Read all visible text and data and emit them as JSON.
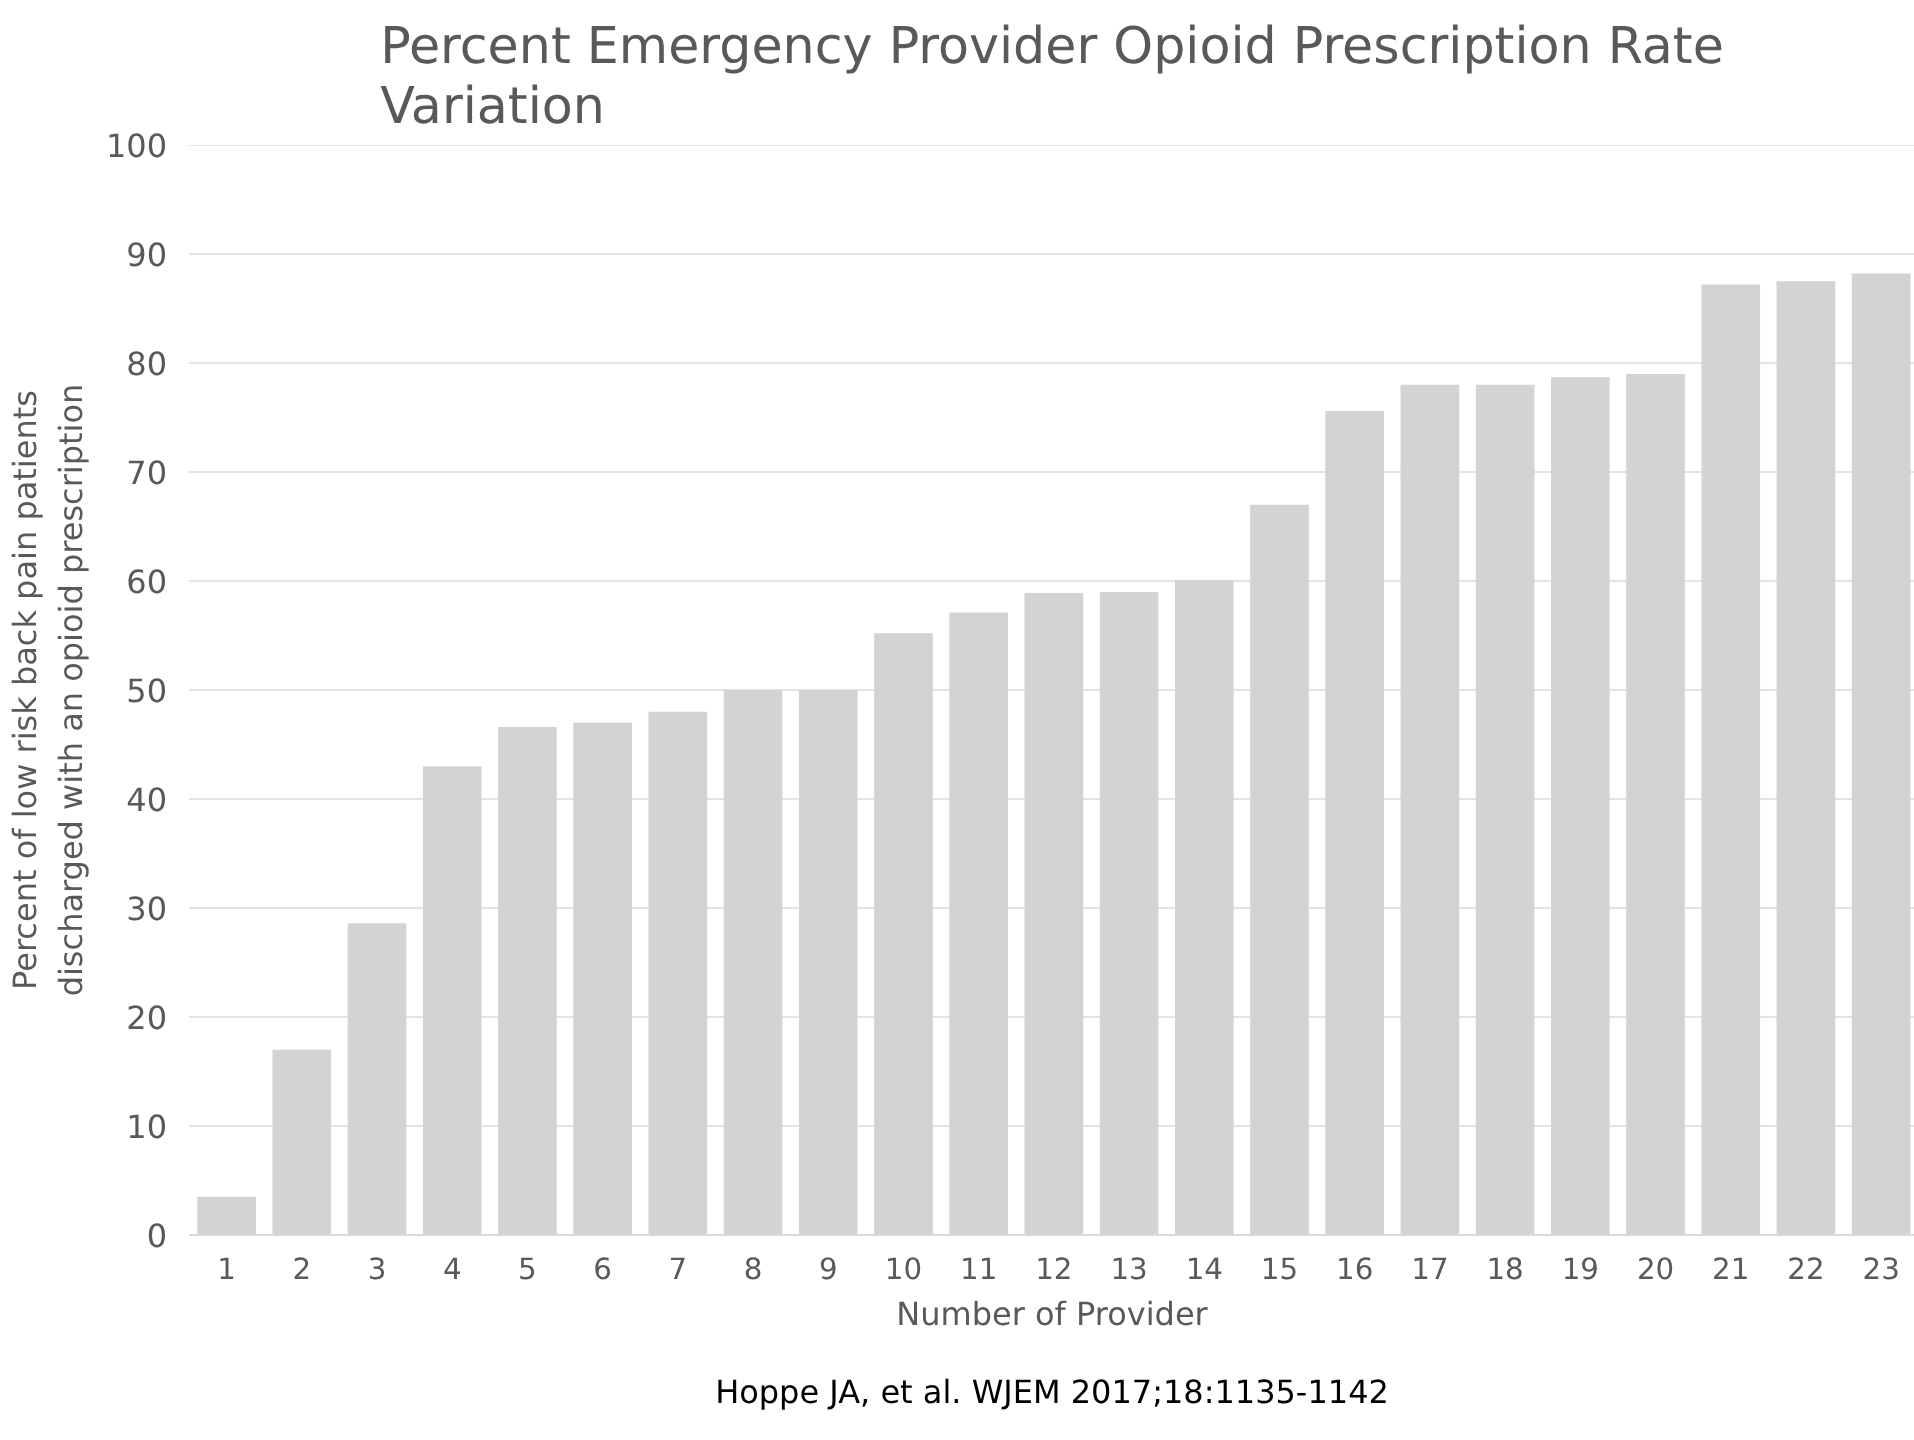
{
  "chart_data": {
    "type": "bar",
    "title": "Percent Emergency Provider Opioid Prescription Rate Variation",
    "xlabel": "Number of Provider",
    "ylabel": "Percent of low risk back pain patients discharged with an opioid prescription",
    "categories": [
      "1",
      "2",
      "3",
      "4",
      "5",
      "6",
      "7",
      "8",
      "9",
      "10",
      "11",
      "12",
      "13",
      "14",
      "15",
      "16",
      "17",
      "18",
      "19",
      "20",
      "21",
      "22",
      "23"
    ],
    "values": [
      3.5,
      17,
      28.6,
      43,
      46.6,
      47,
      48,
      50,
      50,
      55.2,
      57.1,
      58.9,
      59,
      60.1,
      67,
      75.6,
      78,
      78,
      78.7,
      79,
      87.2,
      87.5,
      88.2
    ],
    "color": "#d4d2d3",
    "ylim": [
      0,
      100
    ],
    "yticks": [
      0,
      10,
      20,
      30,
      40,
      50,
      60,
      70,
      80,
      90,
      100
    ],
    "grid": "y",
    "annotations": [
      "Hoppe JA, et al. WJEM 2017;18:1135-1142"
    ]
  }
}
